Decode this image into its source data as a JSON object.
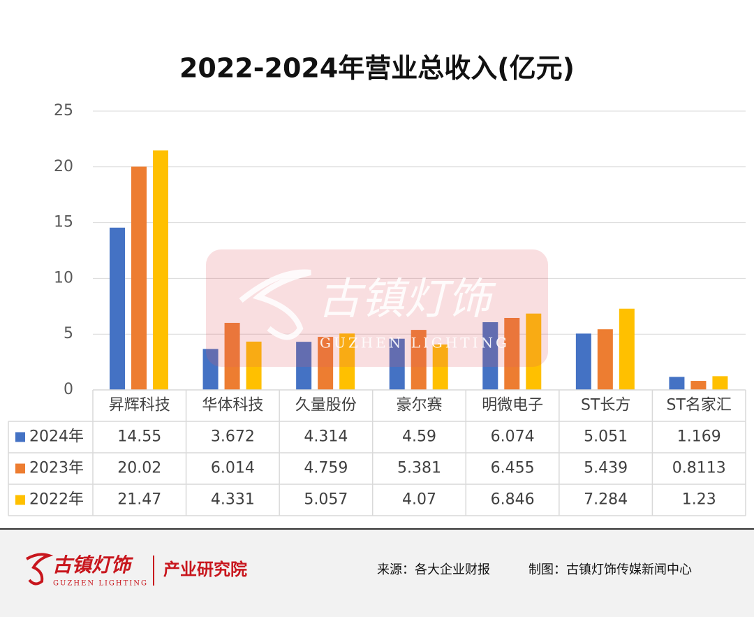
{
  "chart_data": {
    "type": "bar",
    "title": "2022-2024年营业总收入(亿元)",
    "categories": [
      "昇辉科技",
      "华体科技",
      "久量股份",
      "豪尔赛",
      "明微电子",
      "ST长方",
      "ST名家汇"
    ],
    "series": [
      {
        "name": "2024年",
        "color": "#4472c4",
        "values": [
          14.55,
          3.672,
          4.314,
          4.59,
          6.074,
          5.051,
          1.169
        ]
      },
      {
        "name": "2023年",
        "color": "#ed7d31",
        "values": [
          20.02,
          6.014,
          4.759,
          5.381,
          6.455,
          5.439,
          0.8113
        ]
      },
      {
        "name": "2022年",
        "color": "#ffc000",
        "values": [
          21.47,
          4.331,
          5.057,
          4.07,
          6.846,
          7.284,
          1.23
        ]
      }
    ],
    "ylim": [
      0,
      25
    ],
    "yticks": [
      0,
      5,
      10,
      15,
      20,
      25
    ],
    "grid": true
  },
  "watermark": {
    "logo": "古镇灯饰",
    "subtitle": "GUZHEN LIGHTING"
  },
  "footer": {
    "logo": "古镇灯饰",
    "logo_subtitle": "GUZHEN LIGHTING",
    "department": "产业研究院",
    "source": "来源：各大企业财报",
    "credit": "制图：古镇灯饰传媒新闻中心"
  }
}
